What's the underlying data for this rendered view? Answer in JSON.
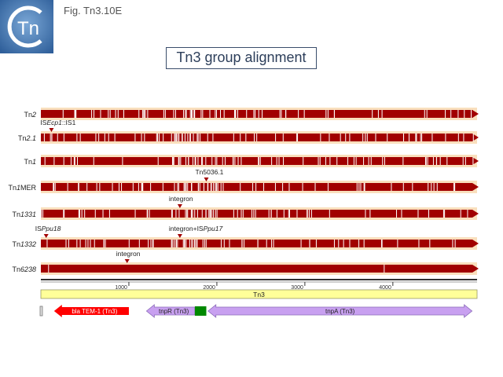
{
  "header": {
    "logo_text": "Tn",
    "fig_label": "Fig. Tn3.10E",
    "title": "Tn3 group alignment"
  },
  "colors": {
    "track_background": "#f9dfbd",
    "arrow_red": "#a10000",
    "variant_white": "#ffffff",
    "insert_marker": "#a10000",
    "scale_bar_yellow": "#ffff99",
    "bla_red": "#ff0000",
    "tnp_purple": "#c8a0f0",
    "res_green": "#008800"
  },
  "tracks": [
    {
      "label_parts": [
        {
          "text": "Tn",
          "italic": false
        },
        {
          "text": "2",
          "italic": true
        }
      ]
    },
    {
      "label_parts": [
        {
          "text": "Tn",
          "italic": false
        },
        {
          "text": "2.1",
          "italic": true
        }
      ]
    },
    {
      "label_parts": [
        {
          "text": "Tn",
          "italic": false
        },
        {
          "text": "1",
          "italic": true
        }
      ]
    },
    {
      "label_parts": [
        {
          "text": "Tn",
          "italic": false
        },
        {
          "text": "1",
          "italic": true
        },
        {
          "text": "MER",
          "italic": false
        }
      ]
    },
    {
      "label_parts": [
        {
          "text": "Tn",
          "italic": false
        },
        {
          "text": "1331",
          "italic": true
        }
      ]
    },
    {
      "label_parts": [
        {
          "text": "Tn",
          "italic": false
        },
        {
          "text": "1332",
          "italic": true
        }
      ]
    },
    {
      "label_parts": [
        {
          "text": "Tn",
          "italic": false
        },
        {
          "text": "6238",
          "italic": true
        }
      ]
    }
  ],
  "insertions": [
    {
      "track": 1,
      "bp": 120,
      "label_parts": [
        {
          "text": "IS",
          "italic": false
        },
        {
          "text": "Ecp1",
          "italic": true
        },
        {
          "text": "::IS1",
          "italic": false
        }
      ]
    },
    {
      "track": 3,
      "bp": 1880,
      "label_parts": [
        {
          "text": "Tn5036.1",
          "italic": false
        }
      ]
    },
    {
      "track": 4,
      "bp": 1580,
      "label_parts": [
        {
          "text": "integron",
          "italic": false
        }
      ]
    },
    {
      "track": 5,
      "bp": 60,
      "label_parts": [
        {
          "text": "IS",
          "italic": false
        },
        {
          "text": "Ppu18",
          "italic": true
        }
      ]
    },
    {
      "track": 5,
      "bp": 1580,
      "label_parts": [
        {
          "text": "integron+IS",
          "italic": false
        },
        {
          "text": "Ppu17",
          "italic": true
        }
      ]
    },
    {
      "track": 6,
      "bp": 980,
      "label_parts": [
        {
          "text": "integron",
          "italic": false
        }
      ]
    }
  ],
  "scale": {
    "total_bp": 4957,
    "ticks": [
      {
        "value": 1000,
        "label": "1000"
      },
      {
        "value": 2000,
        "label": "2000"
      },
      {
        "value": 3000,
        "label": "3000"
      },
      {
        "value": 4000,
        "label": "4000"
      }
    ]
  },
  "element": {
    "name": "Tn3"
  },
  "features": [
    {
      "name": "bla TEM-1 (Tn3)",
      "start": 150,
      "end": 1000,
      "direction": "left"
    },
    {
      "name": "tnpR (Tn3)",
      "start": 1200,
      "end": 1750,
      "direction": "left"
    },
    {
      "name": "res",
      "start": 1750,
      "end": 1880,
      "direction": "none"
    },
    {
      "name": "tnpA (Tn3)",
      "start": 1900,
      "end": 4900,
      "direction": "both"
    }
  ]
}
